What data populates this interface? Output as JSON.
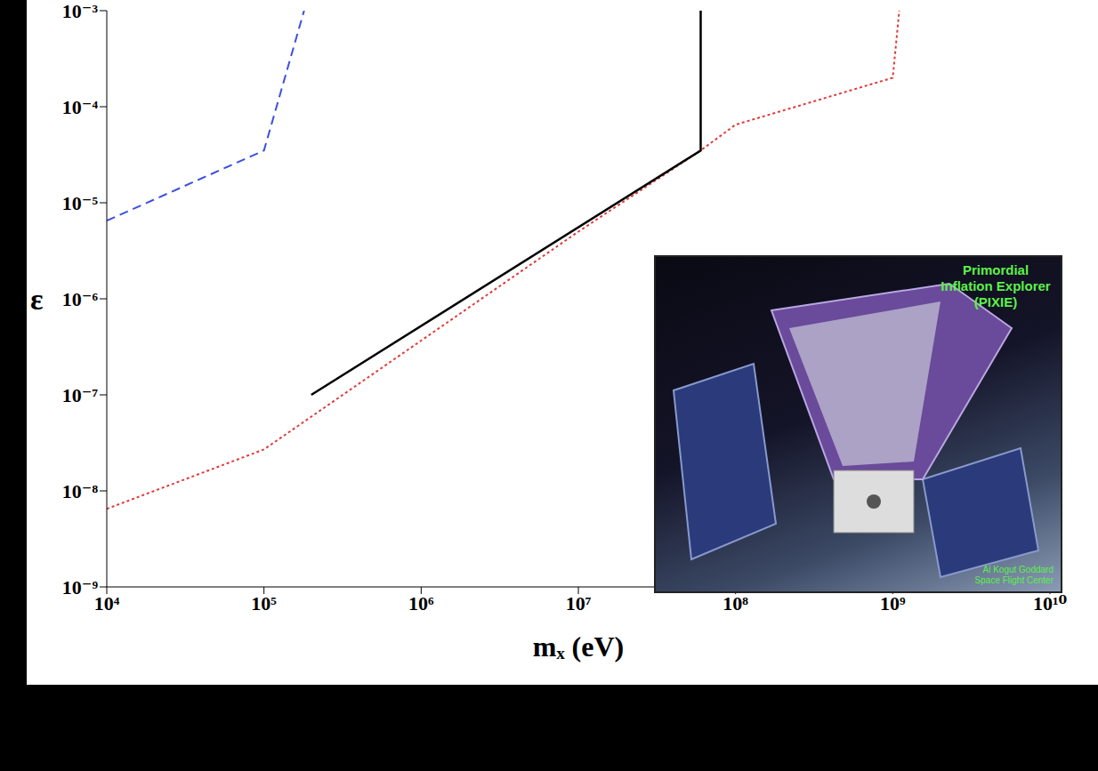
{
  "chart_data": {
    "type": "line",
    "x_label": "mₓ (eV)",
    "y_label": "ε",
    "log": true,
    "xlim": [
      10000,
      10000000000
    ],
    "ylim": [
      1e-09,
      0.001
    ],
    "xticks": [
      {
        "value": 10000,
        "label": "10⁴"
      },
      {
        "value": 100000,
        "label": "10⁵"
      },
      {
        "value": 1000000,
        "label": "10⁶"
      },
      {
        "value": 10000000,
        "label": "10⁷"
      },
      {
        "value": 100000000,
        "label": "10⁸"
      },
      {
        "value": 1000000000,
        "label": "10⁹"
      },
      {
        "value": 10000000000,
        "label": "10¹⁰"
      }
    ],
    "yticks": [
      {
        "value": 1e-09,
        "label": "10⁻⁹"
      },
      {
        "value": 1e-08,
        "label": "10⁻⁸"
      },
      {
        "value": 1e-07,
        "label": "10⁻⁷"
      },
      {
        "value": 1e-06,
        "label": "10⁻⁶"
      },
      {
        "value": 1e-05,
        "label": "10⁻⁵"
      },
      {
        "value": 0.0001,
        "label": "10⁻⁴"
      },
      {
        "value": 0.001,
        "label": "10⁻³"
      }
    ],
    "series": [
      {
        "color": "#3b4fe0",
        "line_style": "dashed",
        "x": [
          10000,
          100000,
          180000
        ],
        "values": [
          6.5e-06,
          3.5e-05,
          0.001
        ]
      },
      {
        "color": "#e03a3a",
        "line_style": "dotted",
        "x": [
          10000,
          100000,
          10000000,
          60000000,
          100000000,
          1000000000,
          1100000000
        ],
        "values": [
          6.5e-09,
          2.7e-08,
          5e-06,
          3.5e-05,
          6.5e-05,
          0.0002,
          0.001
        ]
      },
      {
        "color": "#000000",
        "line_style": "solid",
        "x": [
          200000,
          60000000,
          60000000
        ],
        "values": [
          1e-07,
          3.5e-05,
          0.001
        ]
      }
    ],
    "annotations": [
      "Primordial Inflation Explorer (PIXIE)",
      "Al Kogut Goddard Space Flight Center"
    ]
  }
}
